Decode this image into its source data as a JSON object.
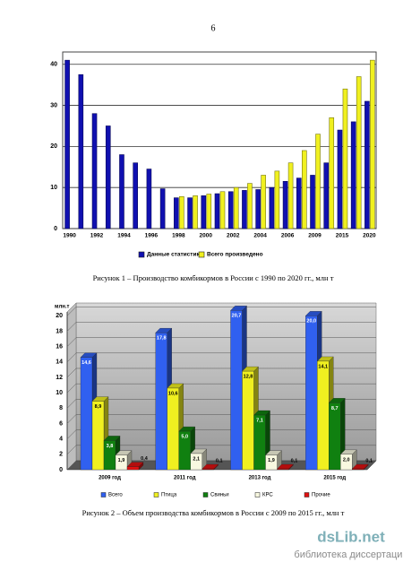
{
  "page_number": "6",
  "chart_data": [
    {
      "type": "bar",
      "categories": [
        "1990",
        null,
        "1992",
        null,
        "1994",
        null,
        "1996",
        null,
        "1998",
        null,
        "2000",
        null,
        "2002",
        null,
        "2004",
        null,
        "2006",
        null,
        "2009",
        null,
        "2015",
        null,
        "2020"
      ],
      "series": [
        {
          "name": "Данные статистики",
          "color": "#1010b0",
          "values": [
            41,
            37.5,
            28,
            25,
            18,
            16,
            14.5,
            9.7,
            7.5,
            7.5,
            8,
            8.5,
            9,
            9.3,
            9.5,
            10,
            11.5,
            12.3,
            13,
            16,
            24,
            26,
            31
          ]
        },
        {
          "name": "Всего произведено",
          "color": "#f0f020",
          "values": [
            null,
            null,
            null,
            null,
            null,
            null,
            null,
            null,
            7.8,
            8,
            8.4,
            9,
            10,
            11,
            13,
            14,
            16,
            19,
            23,
            27,
            34,
            37,
            41
          ]
        }
      ],
      "ylim": [
        0,
        43
      ],
      "yticks": [
        0,
        10,
        20,
        30,
        40
      ],
      "grid": true,
      "caption": "Рисунок 1 – Производство комбикормов в России с 1990 по 2020 гг., млн т"
    },
    {
      "type": "bar",
      "three_d": true,
      "y_label": "млн.т",
      "categories": [
        "2009 год",
        "2011 год",
        "2013 год",
        "2015 год"
      ],
      "series": [
        {
          "name": "Всего",
          "color": "#3060f0",
          "values": [
            14.6,
            17.8,
            20.7,
            20.0
          ],
          "value_labels": [
            "14,6",
            "17,8",
            "20,7",
            "20,0"
          ]
        },
        {
          "name": "Птица",
          "color": "#f0f020",
          "values": [
            8.9,
            10.6,
            12.8,
            14.1
          ],
          "value_labels": [
            "8,9",
            "10,6",
            "12,8",
            "14,1"
          ]
        },
        {
          "name": "Свиньи",
          "color": "#108010",
          "values": [
            3.8,
            5.0,
            7.1,
            8.7
          ],
          "value_labels": [
            "3,8",
            "5,0",
            "7,1",
            "8,7"
          ]
        },
        {
          "name": "КРС",
          "color": "#f8f8e0",
          "values": [
            1.9,
            2.1,
            1.9,
            2.0
          ],
          "value_labels": [
            "1,9",
            "2,1",
            "1,9",
            "2,0"
          ]
        },
        {
          "name": "Прочие",
          "color": "#e01010",
          "values": [
            0.4,
            0.1,
            0.1,
            0.1
          ],
          "value_labels": [
            "0,4",
            "0,1",
            "0,1",
            "0,1"
          ]
        }
      ],
      "ylim": [
        0,
        20.5
      ],
      "yticks": [
        0,
        2,
        4,
        6,
        8,
        10,
        12,
        14,
        16,
        18,
        20
      ],
      "grid": true,
      "caption": "Рисунок 2 – Объем производства комбикормов в России с 2009 по 2015 гг., млн т"
    }
  ],
  "watermark": {
    "site": "dsLib.net",
    "tagline": "библиотека диссертаций"
  }
}
